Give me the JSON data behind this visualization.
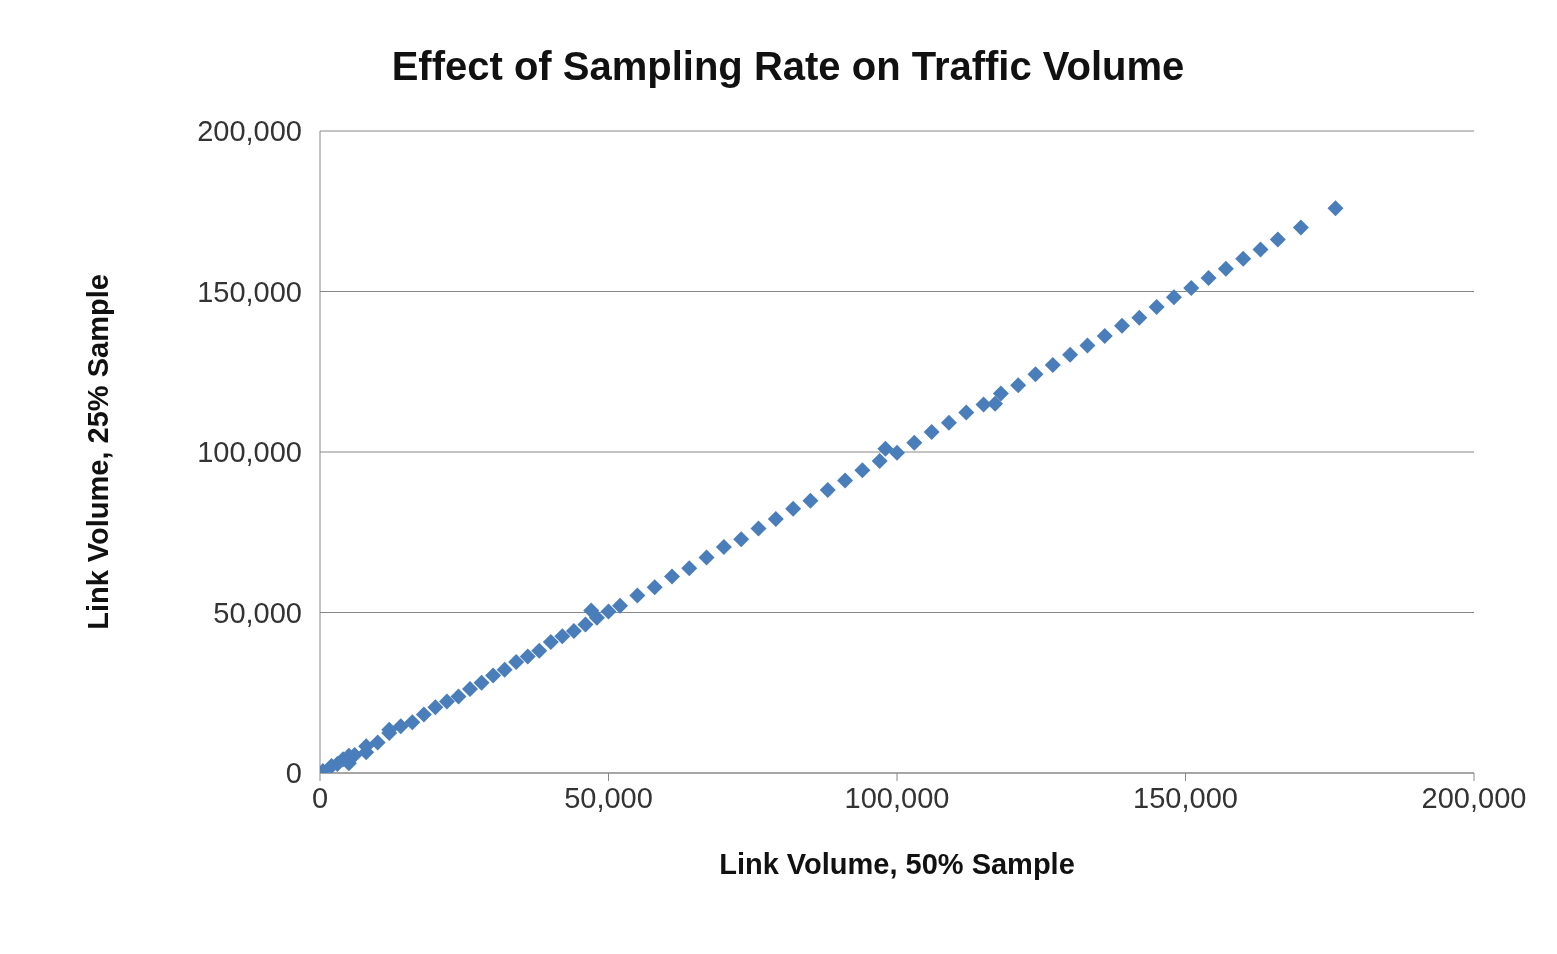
{
  "chart_data": {
    "type": "scatter",
    "title": "Effect of Sampling Rate on Traffic Volume",
    "xlabel": "Link Volume, 50% Sample",
    "ylabel": "Link Volume, 25% Sample",
    "x": [
      500,
      2000,
      3000,
      4000,
      5000,
      5000,
      6000,
      8000,
      8000,
      10000,
      12000,
      12000,
      14000,
      16000,
      18000,
      20000,
      22000,
      24000,
      26000,
      28000,
      30000,
      32000,
      34000,
      36000,
      38000,
      40000,
      42000,
      44000,
      46000,
      47000,
      48000,
      50000,
      52000,
      55000,
      58000,
      61000,
      64000,
      67000,
      70000,
      73000,
      76000,
      79000,
      82000,
      85000,
      88000,
      91000,
      94000,
      97000,
      98000,
      100000,
      103000,
      106000,
      109000,
      112000,
      115000,
      117000,
      118000,
      121000,
      124000,
      127000,
      130000,
      133000,
      136000,
      139000,
      142000,
      145000,
      148000,
      151000,
      154000,
      157000,
      160000,
      163000,
      166000,
      170000,
      176000
    ],
    "series": [
      {
        "color": "#4a7ebb",
        "values": [
          600,
          2200,
          2800,
          4300,
          5400,
          3000,
          5600,
          8300,
          6500,
          9500,
          12500,
          13500,
          14600,
          15800,
          18200,
          20500,
          22300,
          23800,
          26200,
          28100,
          30400,
          32200,
          34600,
          36300,
          38100,
          40800,
          42600,
          44200,
          46300,
          50600,
          48400,
          50300,
          52100,
          55300,
          57900,
          61200,
          63800,
          67100,
          70400,
          72800,
          76200,
          79100,
          82300,
          84800,
          88200,
          91100,
          94300,
          97200,
          101000,
          99800,
          102900,
          106200,
          109100,
          112300,
          114800,
          115000,
          118200,
          120800,
          124200,
          127100,
          130300,
          133200,
          136100,
          139300,
          141800,
          145200,
          148200,
          151100,
          154200,
          157100,
          160200,
          163100,
          166200,
          169900,
          175900
        ]
      }
    ],
    "xlim": [
      0,
      200000
    ],
    "ylim": [
      0,
      200000
    ],
    "xticks": [
      0,
      {
        "value": 50000,
        "label": "50,000"
      },
      {
        "value": 100000,
        "label": "100,000"
      },
      {
        "value": 150000,
        "label": "150,000"
      },
      {
        "value": 200000,
        "label": "200,000"
      }
    ],
    "yticks": [
      0,
      {
        "value": 50000,
        "label": "50,000"
      },
      {
        "value": 100000,
        "label": "100,000"
      },
      {
        "value": 150000,
        "label": "150,000"
      },
      {
        "value": 200000,
        "label": "200,000"
      }
    ],
    "grid": "y",
    "marker": "diamond"
  }
}
